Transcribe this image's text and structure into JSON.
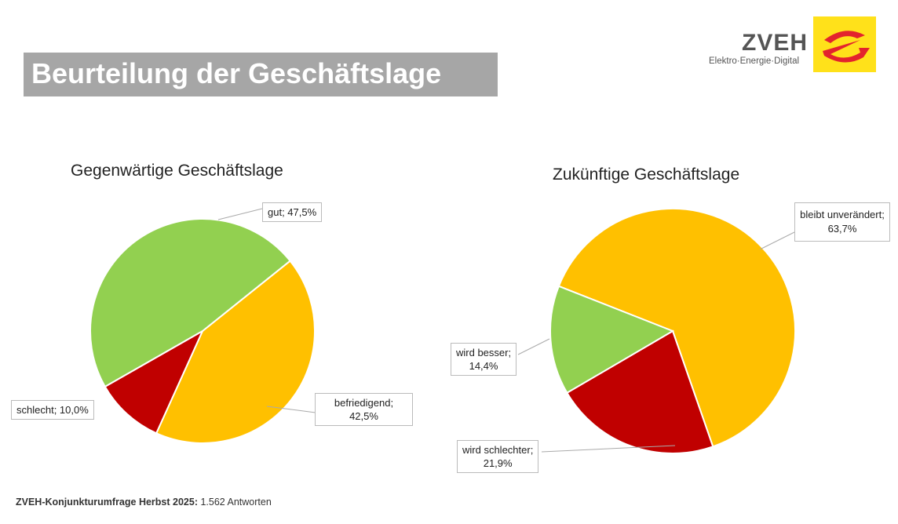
{
  "header": {
    "title": "Beurteilung der Geschäftslage"
  },
  "logo": {
    "name": "ZVEH",
    "tagline": "Elektro·Energie·Digital"
  },
  "footer": {
    "source_bold": "ZVEH-Konjunkturumfrage Herbst 2025:",
    "source_rest": " 1.562 Antworten"
  },
  "colors": {
    "green": "#92d050",
    "yellow": "#ffc000",
    "red": "#c00000"
  },
  "chart_data": [
    {
      "type": "pie",
      "title": "Gegenwärtige Geschäftslage",
      "slices": [
        {
          "label": "befriedigend",
          "value": 42.5,
          "text": "befriedigend;",
          "pct": "42,5%",
          "color": "#ffc000"
        },
        {
          "label": "schlecht",
          "value": 10.0,
          "text": "schlecht; 10,0%",
          "pct": "",
          "color": "#c00000"
        },
        {
          "label": "gut",
          "value": 47.5,
          "text": "gut; 47,5%",
          "pct": "",
          "color": "#92d050"
        }
      ]
    },
    {
      "type": "pie",
      "title": "Zukünftige Geschäftslage",
      "slices": [
        {
          "label": "bleibt unverändert",
          "value": 63.7,
          "text": "bleibt unverändert;",
          "pct": "63,7%",
          "color": "#ffc000"
        },
        {
          "label": "wird schlechter",
          "value": 21.9,
          "text": "wird schlechter;",
          "pct": "21,9%",
          "color": "#c00000"
        },
        {
          "label": "wird besser",
          "value": 14.4,
          "text": "wird besser;",
          "pct": "14,4%",
          "color": "#92d050"
        }
      ]
    }
  ]
}
